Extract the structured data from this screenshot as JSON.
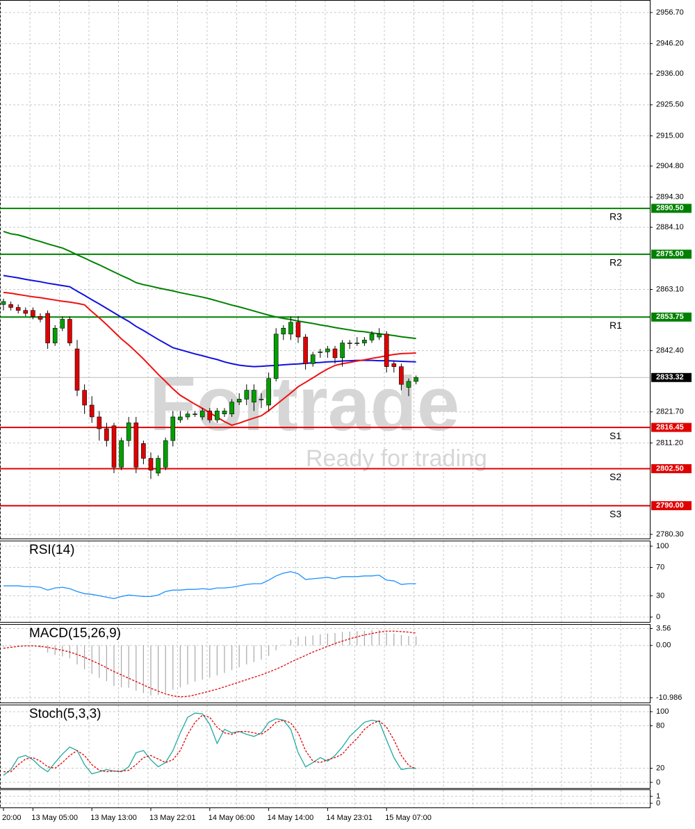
{
  "chart_data": [
    {
      "type": "candlestick",
      "categories": [
        "20:00",
        null,
        null,
        null,
        "13 May 05:00",
        null,
        null,
        null,
        null,
        null,
        null,
        null,
        "13 May 13:00",
        null,
        null,
        null,
        null,
        null,
        null,
        null,
        "13 May 22:01",
        null,
        null,
        null,
        null,
        null,
        null,
        null,
        "14 May 06:00",
        null,
        null,
        null,
        null,
        null,
        null,
        null,
        "14 May 14:00",
        null,
        null,
        null,
        null,
        null,
        null,
        null,
        "14 May 23:01",
        null,
        null,
        null,
        null,
        null,
        null,
        null,
        "15 May 07:00",
        null,
        null,
        null,
        null
      ],
      "open": [
        2858,
        2858,
        2857,
        2856,
        2856,
        2854,
        2855,
        2845,
        2850,
        2853,
        2843,
        2829,
        2824,
        2820,
        2816,
        2817,
        2803,
        2812,
        2818,
        2811,
        2806,
        2801,
        2803,
        2812,
        2819,
        2820,
        2821,
        2820,
        2822,
        2819,
        2821,
        2821,
        2825,
        2826,
        2825,
        2826,
        2824,
        2833,
        2848,
        2848,
        2852,
        2847,
        2838,
        2842,
        2842,
        2843,
        2840,
        2845,
        2845,
        2845,
        2846,
        2847,
        2848,
        2838,
        2837,
        2830,
        2832
      ],
      "high": [
        2860,
        2859,
        2858,
        2857,
        2857,
        2855,
        2856,
        2851,
        2854,
        2854,
        2846,
        2831,
        2827,
        2822,
        2818,
        2818,
        2813,
        2820,
        2820,
        2812,
        2808,
        2807,
        2813,
        2822,
        2822,
        2822,
        2822,
        2823,
        2823,
        2823,
        2823,
        2826,
        2828,
        2831,
        2831,
        2828,
        2835,
        2850,
        2851,
        2854,
        2854,
        2848,
        2842,
        2843,
        2844,
        2844,
        2846,
        2846,
        2847,
        2847,
        2849,
        2850,
        2849,
        2839,
        2838,
        2833,
        2834
      ],
      "low": [
        2856,
        2856,
        2855,
        2854,
        2853,
        2852,
        2843,
        2844,
        2849,
        2844,
        2827,
        2821,
        2818,
        2812,
        2810,
        2801,
        2802,
        2810,
        2801,
        2804,
        2799,
        2800,
        2802,
        2810,
        2818,
        2819,
        2820,
        2819,
        2818,
        2818,
        2820,
        2820,
        2824,
        2824,
        2822,
        2823,
        2822,
        2832,
        2846,
        2846,
        2845,
        2836,
        2837,
        2840,
        2840,
        2838,
        2837,
        2843,
        2844,
        2844,
        2845,
        2846,
        2835,
        2835,
        2829,
        2827,
        2831
      ],
      "close": [
        2859,
        2857,
        2856,
        2855,
        2854,
        2853,
        2845,
        2850,
        2853,
        2845,
        2829,
        2824,
        2820,
        2816,
        2812,
        2803,
        2812,
        2818,
        2803,
        2806,
        2802,
        2806,
        2812,
        2820,
        2820,
        2821,
        2821,
        2822,
        2819,
        2822,
        2822,
        2825,
        2826,
        2829,
        2829,
        2826,
        2833,
        2848,
        2850,
        2852,
        2847,
        2838,
        2841,
        2842,
        2843,
        2840,
        2845,
        2845,
        2845,
        2846,
        2848,
        2848,
        2837,
        2837,
        2831,
        2832,
        2833.32
      ],
      "up_color": "#00a000",
      "down_color": "#e00000",
      "overlays": [
        {
          "color": "#008000",
          "values": [
            2882.7,
            2881.9,
            2881.5,
            2880.8,
            2880,
            2879.3,
            2878.5,
            2877.8,
            2877.1,
            2876,
            2874.8,
            2873.7,
            2872.5,
            2871.4,
            2870.2,
            2869,
            2867.8,
            2866.7,
            2865.4,
            2864.7,
            2864.2,
            2863.6,
            2863.1,
            2862.6,
            2862,
            2861.5,
            2861,
            2860.5,
            2859.9,
            2859.2,
            2858.5,
            2857.8,
            2857.2,
            2856.5,
            2855.8,
            2855.1,
            2854.4,
            2853.8,
            2853.3,
            2852.9,
            2852.4,
            2852,
            2851.6,
            2851.1,
            2850.7,
            2850.2,
            2849.8,
            2849.4,
            2849,
            2848.8,
            2848.4,
            2848.1,
            2847.8,
            2847.5,
            2847.1,
            2846.8,
            2846.5
          ]
        },
        {
          "color": "#1010e0",
          "values": [
            2867.8,
            2867.4,
            2867,
            2866.5,
            2866.1,
            2865.7,
            2865.2,
            2864.8,
            2864.4,
            2864,
            2862.5,
            2861.1,
            2859.6,
            2858.2,
            2856.7,
            2855.2,
            2853.7,
            2852.3,
            2850.6,
            2849.2,
            2847.7,
            2846.2,
            2844.8,
            2843.4,
            2842.7,
            2842,
            2841.3,
            2840.7,
            2840,
            2839.4,
            2838.6,
            2838,
            2837.5,
            2837.2,
            2837,
            2837.1,
            2837.3,
            2837.4,
            2837.6,
            2837.8,
            2837.9,
            2838.1,
            2838.3,
            2838.4,
            2838.6,
            2838.7,
            2838.9,
            2839,
            2839.1,
            2839.1,
            2839.1,
            2839,
            2839,
            2838.9,
            2838.8,
            2838.7,
            2838.6
          ]
        },
        {
          "color": "#ee1111",
          "values": [
            2862.1,
            2861.8,
            2861.4,
            2861,
            2860.6,
            2860.3,
            2859.9,
            2859.5,
            2859.1,
            2858.8,
            2858.4,
            2857.9,
            2855.6,
            2853.5,
            2851.2,
            2848.8,
            2846.4,
            2844.3,
            2842,
            2839.6,
            2837,
            2834.4,
            2832,
            2829.5,
            2827.3,
            2825.8,
            2824.3,
            2822.9,
            2821.4,
            2819.9,
            2818.4,
            2817.2,
            2817.9,
            2818.8,
            2819.6,
            2820.4,
            2822.1,
            2824.1,
            2826.1,
            2828.1,
            2830.2,
            2831.7,
            2833.2,
            2834.8,
            2836.2,
            2837.4,
            2838,
            2838.4,
            2838.9,
            2839.3,
            2839.8,
            2840.2,
            2840.7,
            2841.1,
            2841.4,
            2841.5,
            2841.6
          ]
        }
      ],
      "levels": [
        {
          "label": "R3",
          "value": 2890.5,
          "value_label": "2890.50",
          "color": "#008000"
        },
        {
          "label": "R2",
          "value": 2875,
          "value_label": "2875.00",
          "color": "#008000"
        },
        {
          "label": "R1",
          "value": 2853.75,
          "color": "#008000"
        },
        {
          "label": "S1",
          "value": 2816.45,
          "color": "#e00000"
        },
        {
          "label": "S2",
          "value": 2802.5,
          "value_label": "2802.50",
          "color": "#e00000"
        },
        {
          "label": "S3",
          "value": 2790,
          "value_label": "2790.00",
          "color": "#e00000"
        }
      ],
      "last": 2833.32,
      "watermark": {
        "brand": "Fortrade",
        "tagline": "Ready for trading"
      },
      "ylim": [
        2778.89,
        2960.93
      ],
      "yticks": [
        {
          "value": 2956.7,
          "label": "2956.70"
        },
        {
          "value": 2946.2,
          "label": "2946.20"
        },
        {
          "value": 2936,
          "label": "2936.00"
        },
        {
          "value": 2925.5,
          "label": "2925.50"
        },
        {
          "value": 2915,
          "label": "2915.00"
        },
        {
          "value": 2904.8,
          "label": "2904.80"
        },
        {
          "value": 2894.3,
          "label": "2894.30"
        },
        {
          "value": 2884.1,
          "label": "2884.10"
        },
        {
          "value": 2863.1,
          "label": "2863.10"
        },
        {
          "value": 2842.4,
          "label": "2842.40"
        },
        {
          "value": 2821.7,
          "label": "2821.70"
        },
        {
          "value": 2811.2,
          "label": "2811.20"
        },
        {
          "value": 2780.3,
          "label": "2780.30"
        }
      ],
      "grid": true
    },
    {
      "type": "line",
      "title": "RSI(14)",
      "ylim": [
        -6.9,
        107.8
      ],
      "yticks": [
        0,
        30,
        70,
        100
      ],
      "series": [
        {
          "color": "#1e90ff",
          "values": [
            44,
            44,
            44,
            43,
            43,
            42,
            38,
            41,
            42,
            40,
            36,
            33,
            32,
            30,
            28,
            26,
            29,
            31,
            30,
            29,
            29,
            31,
            36,
            38,
            38,
            39,
            39,
            40,
            39,
            41,
            41,
            42,
            44,
            46,
            47,
            47,
            52,
            58,
            62,
            64,
            61,
            53,
            54,
            55,
            56,
            54,
            57,
            57,
            57,
            58,
            58,
            59,
            52,
            51,
            46,
            47,
            47
          ]
        }
      ]
    },
    {
      "type": "line",
      "title": "MACD(15,26,9)",
      "ylim": [
        -12,
        4.5
      ],
      "yticks": [
        3.56,
        {
          "value": 0,
          "label": "0.00"
        },
        -10.986
      ],
      "series": [
        {
          "type": "bar",
          "color": "#a8a8a8",
          "values": [
            -0.3,
            -0.2,
            0,
            0,
            -0.2,
            -0.5,
            -1.5,
            -2,
            -2.3,
            -2.7,
            -4,
            -5,
            -6,
            -6.8,
            -7.5,
            -8.5,
            -8.8,
            -8.9,
            -9.5,
            -10,
            -10.5,
            -10.4,
            -10,
            -9.3,
            -8.8,
            -8.2,
            -7.6,
            -7.2,
            -6.8,
            -6.3,
            -5.8,
            -5.2,
            -4.6,
            -4,
            -3.5,
            -3,
            -2.2,
            -1,
            0.2,
            1.2,
            1.8,
            1.9,
            2.1,
            2.3,
            2.5,
            2.6,
            2.8,
            2.9,
            3,
            3.1,
            3.2,
            3.3,
            2.7,
            2.5,
            2.2,
            2,
            1.9
          ]
        },
        {
          "type": "line",
          "dashed": true,
          "color": "#e00000",
          "values": [
            -0.6,
            -0.4,
            -0.2,
            -0.1,
            -0.1,
            -0.2,
            -0.4,
            -0.7,
            -1,
            -1.4,
            -1.9,
            -2.5,
            -3.2,
            -3.9,
            -4.7,
            -5.5,
            -6.2,
            -6.9,
            -7.6,
            -8.3,
            -9,
            -9.6,
            -10.2,
            -10.6,
            -10.8,
            -10.7,
            -10.4,
            -10,
            -9.6,
            -9.2,
            -8.7,
            -8.2,
            -7.7,
            -7.2,
            -6.7,
            -6.2,
            -5.6,
            -5,
            -4.3,
            -3.5,
            -2.8,
            -2.1,
            -1.4,
            -0.8,
            -0.2,
            0.4,
            0.9,
            1.4,
            1.8,
            2.2,
            2.5,
            2.8,
            3,
            3,
            2.9,
            2.8,
            2.6
          ]
        }
      ]
    },
    {
      "type": "line",
      "title": "Stoch(5,3,3)",
      "ylim": [
        -8,
        110
      ],
      "yticks": [
        0,
        20,
        80,
        100
      ],
      "series": [
        {
          "type": "line",
          "color": "#20a8a0",
          "values": [
            10,
            18,
            35,
            38,
            32,
            22,
            15,
            28,
            40,
            50,
            45,
            25,
            12,
            15,
            18,
            16,
            15,
            22,
            42,
            45,
            32,
            22,
            28,
            45,
            70,
            92,
            98,
            97,
            82,
            55,
            75,
            70,
            72,
            68,
            65,
            70,
            85,
            90,
            88,
            75,
            42,
            22,
            28,
            35,
            30,
            38,
            50,
            65,
            75,
            85,
            88,
            86,
            60,
            35,
            18,
            20,
            20
          ]
        },
        {
          "type": "line",
          "dashed": true,
          "color": "#e00000",
          "values": [
            15,
            15,
            25,
            33,
            35,
            30,
            22,
            20,
            28,
            38,
            45,
            38,
            25,
            17,
            15,
            16,
            16,
            17,
            25,
            35,
            38,
            33,
            28,
            32,
            45,
            68,
            85,
            95,
            92,
            78,
            70,
            68,
            72,
            72,
            70,
            68,
            75,
            85,
            88,
            84,
            70,
            45,
            30,
            28,
            32,
            35,
            40,
            52,
            62,
            75,
            83,
            87,
            78,
            60,
            38,
            24,
            19
          ]
        }
      ]
    },
    {
      "type": "line",
      "ylim": [
        -0.6,
        2
      ],
      "yticks": [
        0,
        1
      ]
    }
  ]
}
